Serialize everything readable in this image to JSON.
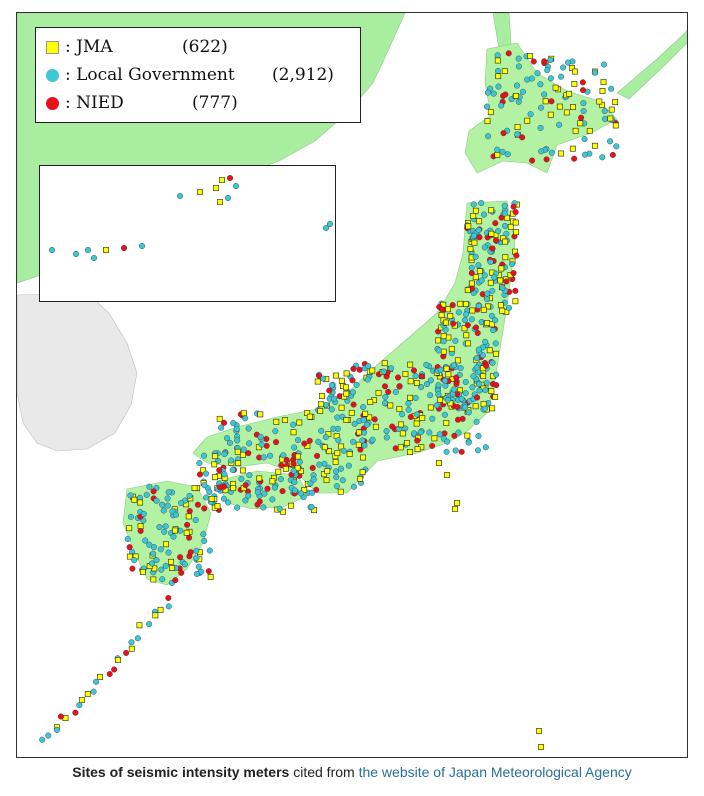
{
  "legend": {
    "items": [
      {
        "symbol": "square",
        "color": "#ffff00",
        "label": ": JMA",
        "count": "(622)"
      },
      {
        "symbol": "circle",
        "color": "#3cc6d6",
        "label": ": Local Government",
        "count": "(2,912)"
      },
      {
        "symbol": "circle",
        "color": "#e8101a",
        "label": ": NIED",
        "count": "(777)"
      }
    ]
  },
  "colors": {
    "land_japan": "#b2f2a2",
    "land_mainland": "#a9eea0",
    "korea": "#ececec",
    "sea": "#ffffff",
    "jma": "#ffff00",
    "local_government": "#3cc6d6",
    "nied": "#e8101a"
  },
  "caption": {
    "bold": "Sites of seismic intensity meters",
    "middle": " cited from ",
    "link": "the website of Japan Meteorological Agency"
  }
}
